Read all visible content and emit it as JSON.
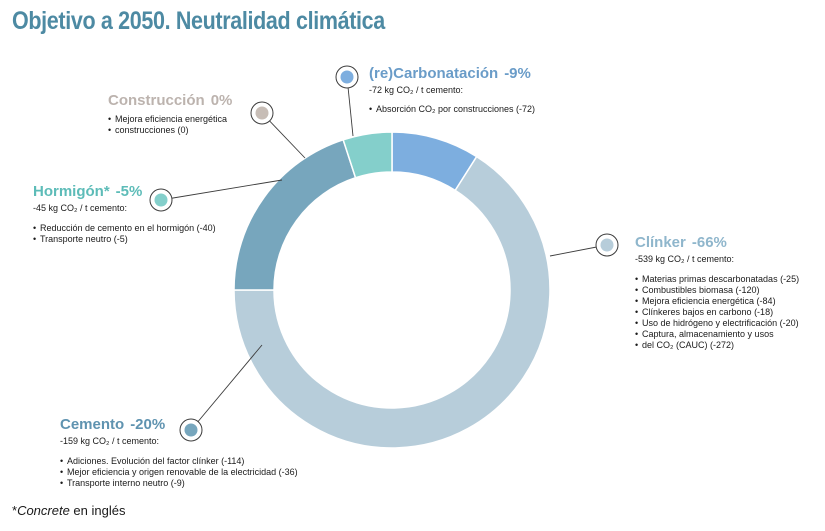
{
  "title": "Objetivo a 2050. Neutralidad climática",
  "colors": {
    "title": "#4d8aa3",
    "clinker": "#b7cdda",
    "cemento": "#77a6bd",
    "hormigon": "#84cfcb",
    "construccion": "#c7bdb6",
    "recarbonatacion": "#7daedf"
  },
  "chart_data": {
    "type": "pie",
    "title": "Objetivo a 2050. Neutralidad climática",
    "units": "kg CO₂ / t cemento",
    "slices": [
      {
        "key": "recarbonatacion",
        "name": "(re)Carbonatación",
        "percent": "-9%",
        "value": -72,
        "share": 0.09
      },
      {
        "key": "clinker",
        "name": "Clínker",
        "percent": "-66%",
        "value": -539,
        "share": 0.66
      },
      {
        "key": "cemento",
        "name": "Cemento",
        "percent": "-20%",
        "value": -159,
        "share": 0.2
      },
      {
        "key": "hormigon",
        "name": "Hormigón*",
        "percent": "-5%",
        "value": -45,
        "share": 0.05
      },
      {
        "key": "construccion",
        "name": "Construcción",
        "percent": "0%",
        "value": 0,
        "share": 0.0
      }
    ]
  },
  "labels": {
    "recarbonatacion": {
      "name": "(re)Carbonatación",
      "pct": "-9%",
      "sub": "-72 kg CO₂ / t cemento:",
      "items": [
        "Absorción CO₂ por construcciones (-72)"
      ]
    },
    "construccion": {
      "name": "Construcción",
      "pct": "0%",
      "sub": "",
      "items": [
        "Mejora eficiencia energética",
        "construcciones (0)"
      ]
    },
    "hormigon": {
      "name": "Hormigón*",
      "pct": "-5%",
      "sub": "-45 kg CO₂ / t cemento:",
      "items": [
        "Reducción de cemento en el hormigón (-40)",
        "Transporte neutro (-5)"
      ]
    },
    "clinker": {
      "name": "Clínker",
      "pct": "-66%",
      "sub": "-539 kg CO₂ / t cemento:",
      "items": [
        "Materias primas descarbonatadas (-25)",
        "Combustibles biomasa (-120)",
        "Mejora eficiencia energética (-84)",
        "Clínkeres bajos en carbono (-18)",
        "Uso de hidrógeno y electrificación (-20)",
        "Captura, almacenamiento y usos",
        "del CO₂ (CAUC) (-272)"
      ]
    },
    "cemento": {
      "name": "Cemento",
      "pct": "-20%",
      "sub": "-159 kg CO₂ / t cemento:",
      "items": [
        "Adiciones. Evolución del factor clínker (-114)",
        "Mejor eficiencia y origen renovable de la electricidad (-36)",
        "Transporte interno neutro (-9)"
      ]
    }
  },
  "footnote": {
    "star": "*",
    "italic": "Concrete",
    "rest": " en inglés"
  }
}
